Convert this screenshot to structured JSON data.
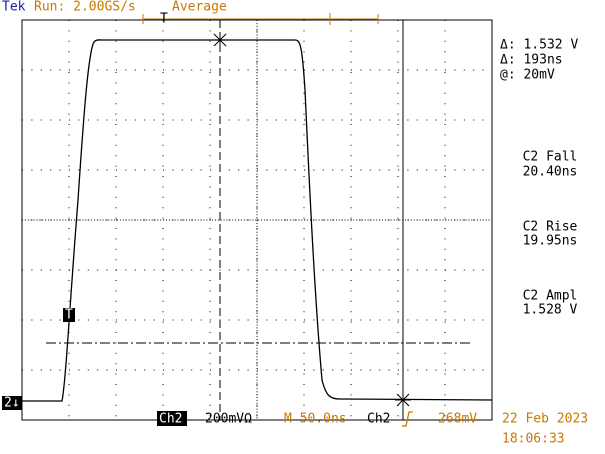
{
  "header": {
    "brand": "Tek",
    "status": "Run: 2.00GS/s",
    "mode": "Average",
    "trigger_position": "T"
  },
  "cursor_readout": [
    "Δ: 1.532 V",
    "Δ: 193ns",
    "@: 20mV"
  ],
  "measurements": [
    {
      "label": "C2 Fall",
      "value": "20.40ns"
    },
    {
      "label": "C2 Rise",
      "value": "19.95ns"
    },
    {
      "label": "C2 Ampl",
      "value": "1.528 V"
    }
  ],
  "markers": {
    "channel": "2↓",
    "trigger": "T"
  },
  "footer": {
    "channel": "Ch2",
    "scale": "200mVΩ",
    "timebase": "M 50.0ns",
    "trigger_source": "Ch2",
    "trigger_level": "268mV",
    "date": "22 Feb 2023",
    "time": "18:06:33"
  }
}
